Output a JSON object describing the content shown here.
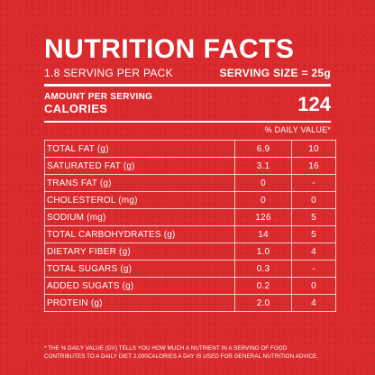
{
  "title": "NUTRITION FACTS",
  "servings_per_pack": "1.8 SERVING PER PACK",
  "serving_size": "SERVING SIZE = 25g",
  "amount_per_serving_label": "AMOUNT PER SERVING",
  "calories_label": "CALORIES",
  "calories_value": "124",
  "daily_value_header": "% DAILY VALUE*",
  "nutrients": [
    {
      "name": "TOTAL FAT (g)",
      "amount": "6.9",
      "dv": "10"
    },
    {
      "name": "SATURATED FAT (g)",
      "amount": "3.1",
      "dv": "16"
    },
    {
      "name": "TRANS FAT (g)",
      "amount": "0",
      "dv": "-"
    },
    {
      "name": "CHOLESTEROL (mg)",
      "amount": "0",
      "dv": "0"
    },
    {
      "name": "SODIUM (mg)",
      "amount": "126",
      "dv": "5"
    },
    {
      "name": "TOTAL CARBOHYDRATES (g)",
      "amount": "14",
      "dv": "5"
    },
    {
      "name": "DIETARY FIBER (g)",
      "amount": "1.0",
      "dv": "4"
    },
    {
      "name": "TOTAL SUGARS (g)",
      "amount": "0.3",
      "dv": "-"
    },
    {
      "name": "ADDED SUGATS (g)",
      "amount": "0.2",
      "dv": "0"
    },
    {
      "name": "PROTEIN (g)",
      "amount": "2.0",
      "dv": "4"
    }
  ],
  "footnote_line1": "* THE % DAILY VALUE (DV) TELLS YOU HOW MUCH A NUTRIENT IN A SERVING OF FOOD",
  "footnote_line2": "CONTRIBUTES TO A DAILY DIET 2,000CALORIES A DAY IS USED FOR GENERAL NUTRITION ADVICE.",
  "colors": {
    "background": "#db2b2e",
    "text": "#ffffff"
  }
}
